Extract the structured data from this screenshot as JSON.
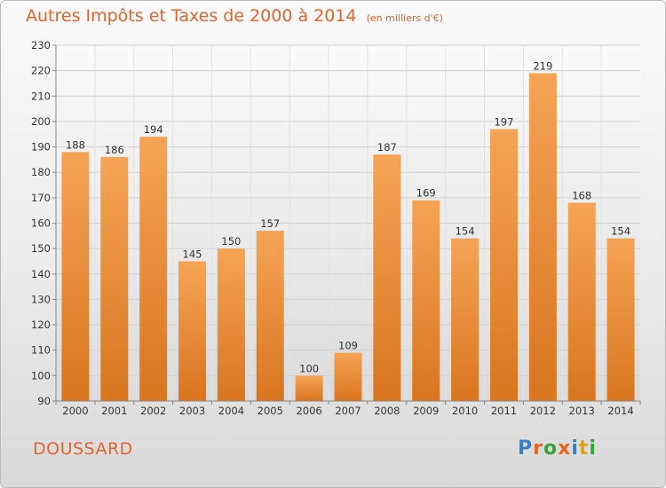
{
  "header": {
    "title": "Autres Impôts et Taxes de 2000 à 2014",
    "unit": "(en milliers d'€)"
  },
  "commune": "DOUSSARD",
  "logo": {
    "text": "Proxiti",
    "colors": [
      "#3b7fc4",
      "#e8661e",
      "#3ba13b",
      "#e8661e",
      "#3b7fc4",
      "#e0a01e",
      "#3ba13b"
    ]
  },
  "chart_data": {
    "type": "bar",
    "title": "Autres Impôts et Taxes de 2000 à 2014",
    "categories": [
      "2000",
      "2001",
      "2002",
      "2003",
      "2004",
      "2005",
      "2006",
      "2007",
      "2008",
      "2009",
      "2010",
      "2011",
      "2012",
      "2013",
      "2014"
    ],
    "values": [
      188,
      186,
      194,
      145,
      150,
      157,
      100,
      109,
      187,
      169,
      154,
      197,
      219,
      168,
      154
    ],
    "ylim": [
      90,
      230
    ],
    "yticks": [
      90,
      100,
      110,
      120,
      130,
      140,
      150,
      160,
      170,
      180,
      190,
      200,
      210,
      220,
      230
    ],
    "grid": true,
    "bar_color_top": "#f5a455",
    "bar_color_bottom": "#d9751f"
  }
}
